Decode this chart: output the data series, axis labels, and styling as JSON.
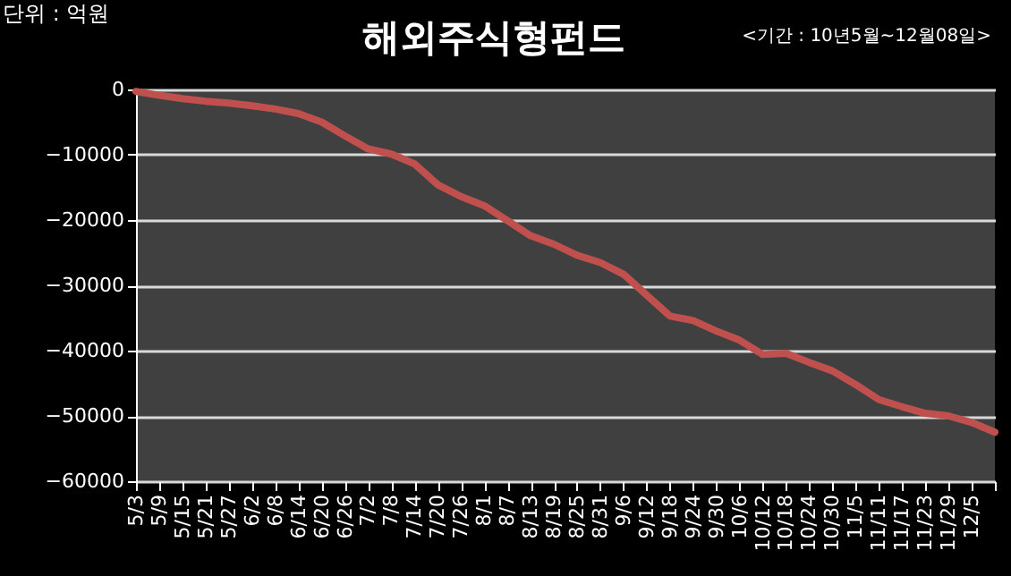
{
  "chart_data": {
    "type": "line",
    "title": "해외주식형펀드",
    "subtitle": "<기간 : 10년5월~12월08일>",
    "ylabel": "단위 : 억원",
    "categories": [
      "5/3",
      "5/9",
      "5/15",
      "5/21",
      "5/27",
      "6/2",
      "6/8",
      "6/14",
      "6/20",
      "6/26",
      "7/2",
      "7/8",
      "7/14",
      "7/20",
      "7/26",
      "8/1",
      "8/7",
      "8/13",
      "8/19",
      "8/25",
      "8/31",
      "9/6",
      "9/12",
      "9/18",
      "9/24",
      "9/30",
      "10/6",
      "10/12",
      "10/18",
      "10/24",
      "10/30",
      "11/5",
      "11/11",
      "11/17",
      "11/23",
      "11/29",
      "12/5",
      null
    ],
    "series": [
      {
        "color": "#c0504d",
        "values": [
          -300,
          -900,
          -1400,
          -1800,
          -2100,
          -2500,
          -3000,
          -3700,
          -5000,
          -7100,
          -9100,
          -9900,
          -11400,
          -14600,
          -16400,
          -17800,
          -20100,
          -22400,
          -23700,
          -25400,
          -26500,
          -28300,
          -31500,
          -34700,
          -35400,
          -37000,
          -38400,
          -40600,
          -40400,
          -41800,
          -43100,
          -45200,
          -47500,
          -48600,
          -49600,
          -50000,
          -51000,
          -52500
        ]
      }
    ],
    "ylim": [
      -60000,
      0
    ],
    "yticks": [
      -60000,
      -50000,
      -40000,
      -30000,
      -20000,
      -10000,
      0
    ],
    "grid": "y",
    "marker": "none",
    "line_style": "solid"
  }
}
